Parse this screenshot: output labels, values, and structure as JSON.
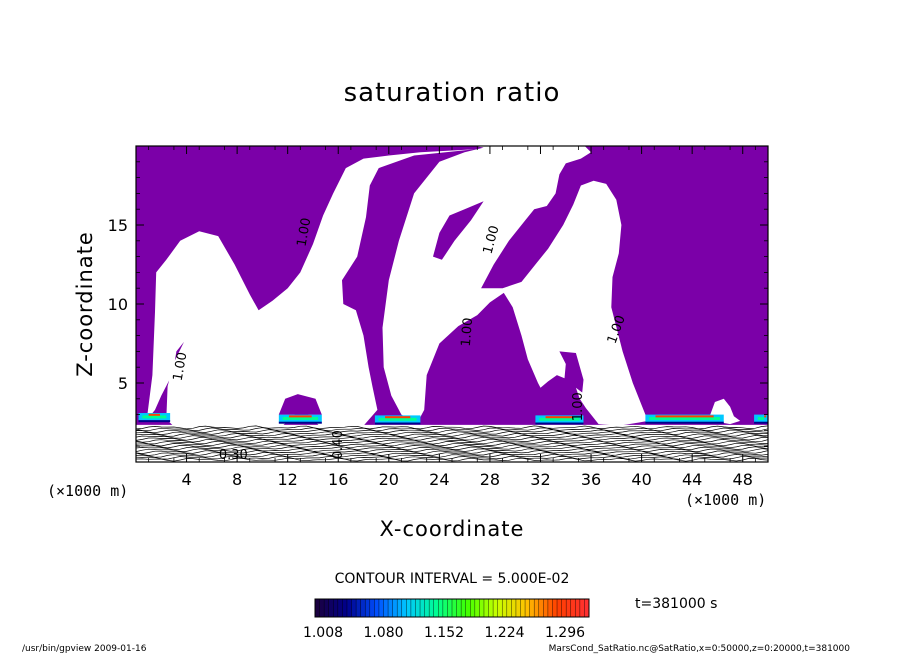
{
  "chart_data": {
    "type": "contour",
    "title": "saturation ratio",
    "xlabel": "X-coordinate",
    "ylabel": "Z-coordinate",
    "x_unit": "(×1000 m)",
    "z_unit": "(×1000 m)",
    "xlim": [
      0,
      50
    ],
    "ylim": [
      0,
      20
    ],
    "x_ticks": [
      4,
      8,
      12,
      16,
      20,
      24,
      28,
      32,
      36,
      40,
      44,
      48
    ],
    "y_ticks": [
      5,
      10,
      15
    ],
    "contour_interval_text": "CONTOUR INTERVAL = 5.000E-02",
    "time_text": "t=381000 s",
    "colorbar_ticks": [
      "1.008",
      "1.080",
      "1.152",
      "1.224",
      "1.296"
    ],
    "contour_labels": [
      "1.00",
      "1.00",
      "1.00",
      "1.00",
      "1.00",
      "1.00",
      "0.30",
      "0.40"
    ],
    "colors": {
      "fill": "#7b00a8",
      "colormap": [
        "#1a0040",
        "#00008c",
        "#0050ff",
        "#00c8ff",
        "#00ff90",
        "#40ff00",
        "#c8ff00",
        "#ffc000",
        "#ff4000",
        "#ff3030"
      ]
    }
  },
  "footer": {
    "left": "/usr/bin/gpview   2009-01-16",
    "right": "MarsCond_SatRatio.nc@SatRatio,x=0:50000,z=0:20000,t=381000"
  }
}
